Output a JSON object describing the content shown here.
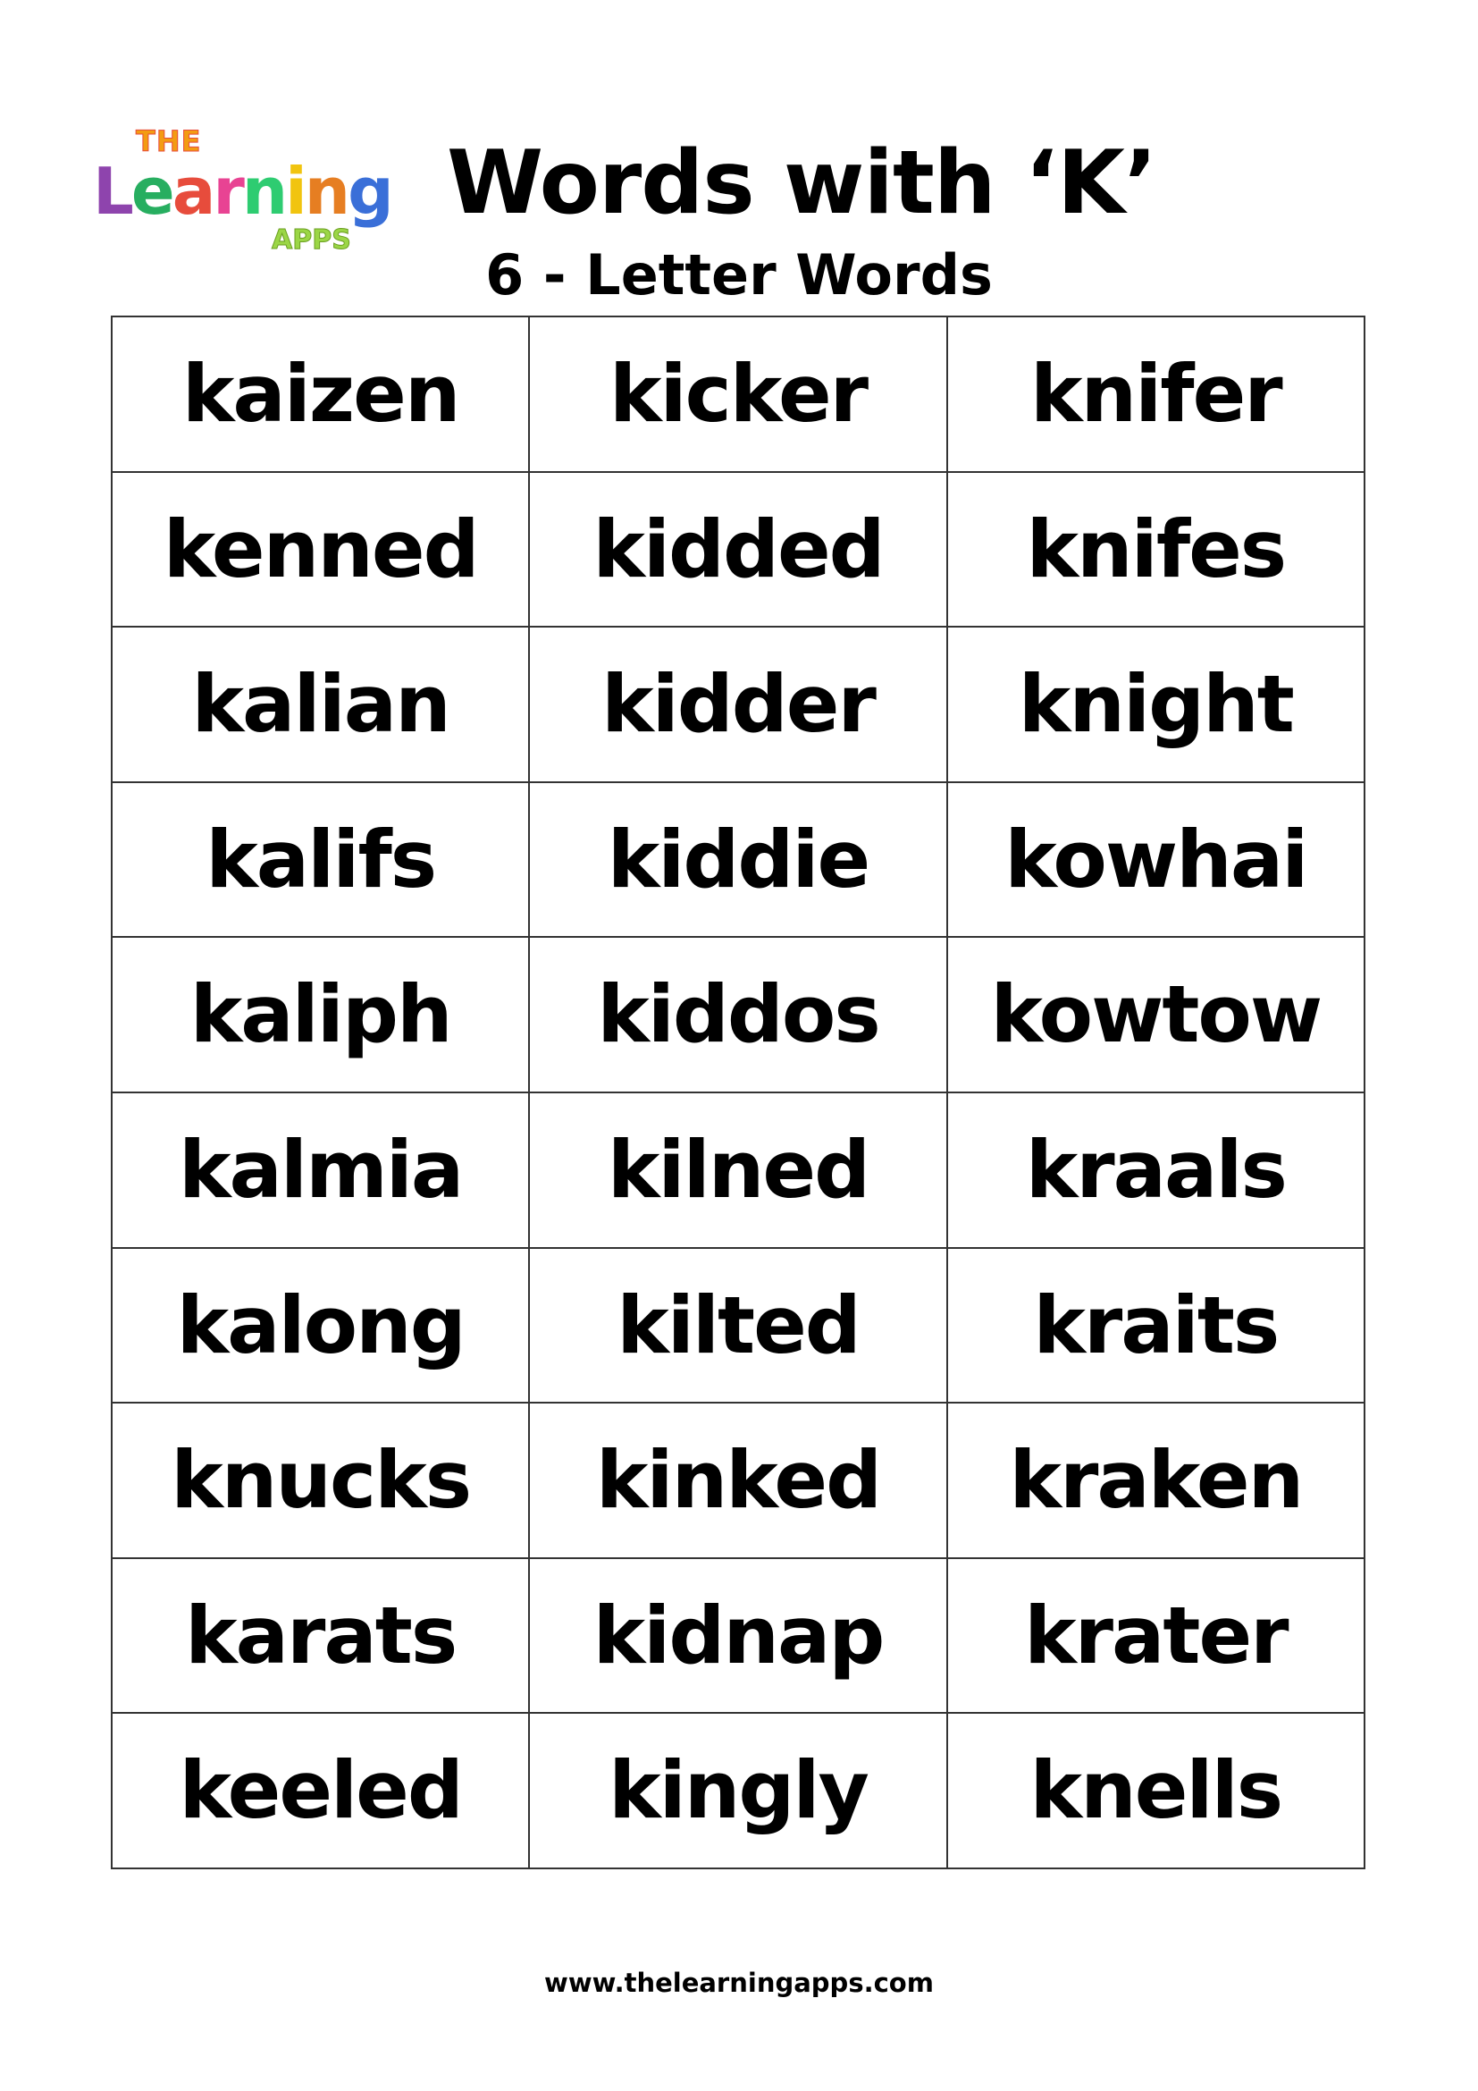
{
  "logo": {
    "the": "THE",
    "learning": "Learning",
    "apps": "APPS"
  },
  "title": "Words with ‘K’",
  "subtitle": "6 - Letter Words",
  "words": [
    [
      "kaizen",
      "kicker",
      "knifer"
    ],
    [
      "kenned",
      "kidded",
      "knifes"
    ],
    [
      "kalian",
      "kidder",
      "knight"
    ],
    [
      "kalifs",
      "kiddie",
      "kowhai"
    ],
    [
      "kaliph",
      "kiddos",
      "kowtow"
    ],
    [
      "kalmia",
      "kilned",
      "kraals"
    ],
    [
      "kalong",
      "kilted",
      "kraits"
    ],
    [
      "knucks",
      "kinked",
      "kraken"
    ],
    [
      "karats",
      "kidnap",
      "krater"
    ],
    [
      "keeled",
      "kingly",
      "knells"
    ]
  ],
  "footer": "www.thelearningapps.com"
}
